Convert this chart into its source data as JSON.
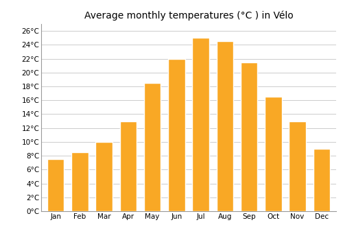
{
  "title": "Average monthly temperatures (°C ) in Vélo",
  "months": [
    "Jan",
    "Feb",
    "Mar",
    "Apr",
    "May",
    "Jun",
    "Jul",
    "Aug",
    "Sep",
    "Oct",
    "Nov",
    "Dec"
  ],
  "values": [
    7.5,
    8.5,
    10.0,
    13.0,
    18.5,
    22.0,
    25.0,
    24.5,
    21.5,
    16.5,
    13.0,
    9.0
  ],
  "bar_color": "#F9A825",
  "bar_edge_color": "#FFFFFF",
  "ylim": [
    0,
    27
  ],
  "yticks": [
    0,
    2,
    4,
    6,
    8,
    10,
    12,
    14,
    16,
    18,
    20,
    22,
    24,
    26
  ],
  "ytick_labels": [
    "0°C",
    "2°C",
    "4°C",
    "6°C",
    "8°C",
    "10°C",
    "12°C",
    "14°C",
    "16°C",
    "18°C",
    "20°C",
    "22°C",
    "24°C",
    "26°C"
  ],
  "background_color": "#FFFFFF",
  "grid_color": "#CCCCCC",
  "title_fontsize": 10,
  "tick_fontsize": 7.5,
  "bar_width": 0.7
}
